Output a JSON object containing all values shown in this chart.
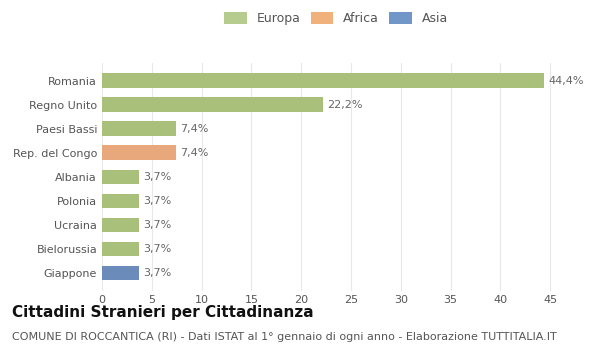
{
  "categories": [
    "Giappone",
    "Bielorussia",
    "Ucraina",
    "Polonia",
    "Albania",
    "Rep. del Congo",
    "Paesi Bassi",
    "Regno Unito",
    "Romania"
  ],
  "values": [
    3.7,
    3.7,
    3.7,
    3.7,
    3.7,
    7.4,
    7.4,
    22.2,
    44.4
  ],
  "colors": [
    "#6b8cba",
    "#a8c07a",
    "#a8c07a",
    "#a8c07a",
    "#a8c07a",
    "#e8a87c",
    "#a8c07a",
    "#a8c07a",
    "#a8c07a"
  ],
  "labels": [
    "3,7%",
    "3,7%",
    "3,7%",
    "3,7%",
    "3,7%",
    "7,4%",
    "7,4%",
    "22,2%",
    "44,4%"
  ],
  "legend": [
    {
      "label": "Europa",
      "color": "#b5cc8e"
    },
    {
      "label": "Africa",
      "color": "#f0b27a"
    },
    {
      "label": "Asia",
      "color": "#7097c8"
    }
  ],
  "xlim": [
    0,
    47
  ],
  "xticks": [
    0,
    5,
    10,
    15,
    20,
    25,
    30,
    35,
    40,
    45
  ],
  "title": "Cittadini Stranieri per Cittadinanza",
  "subtitle": "COMUNE DI ROCCANTICA (RI) - Dati ISTAT al 1° gennaio di ogni anno - Elaborazione TUTTITALIA.IT",
  "bg_color": "#ffffff",
  "grid_color": "#e8e8e8",
  "bar_height": 0.6,
  "title_fontsize": 11,
  "subtitle_fontsize": 8,
  "label_fontsize": 8,
  "tick_fontsize": 8,
  "legend_fontsize": 9
}
